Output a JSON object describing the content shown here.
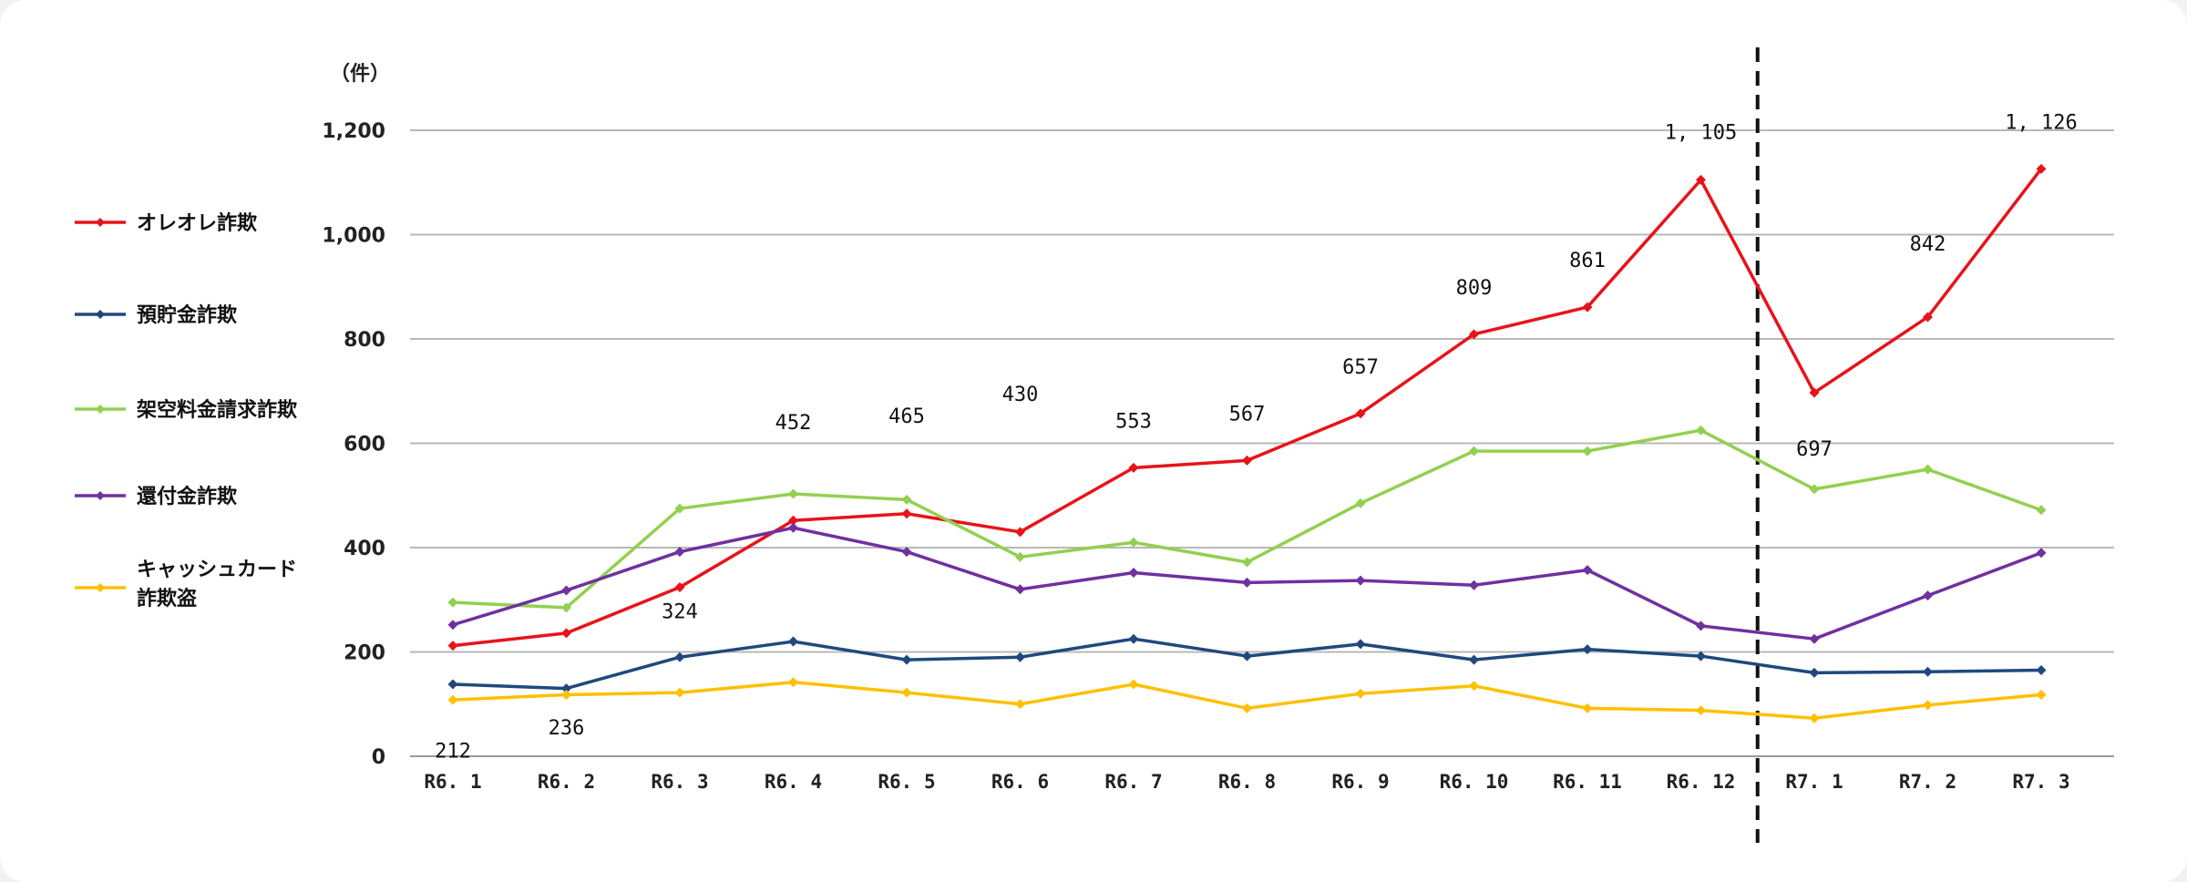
{
  "chart_data": {
    "type": "line",
    "unit_label": "（件）",
    "categories": [
      "R6. 1",
      "R6. 2",
      "R6. 3",
      "R6. 4",
      "R6. 5",
      "R6. 6",
      "R6. 7",
      "R6. 8",
      "R6. 9",
      "R6. 10",
      "R6. 11",
      "R6. 12",
      "R7. 1",
      "R7. 2",
      "R7. 3"
    ],
    "ylim": [
      0,
      1200
    ],
    "yticks": [
      0,
      200,
      400,
      600,
      800,
      1000,
      1200
    ],
    "ytick_labels": [
      "0",
      "200",
      "400",
      "600",
      "800",
      "1,000",
      "1,200"
    ],
    "grid": true,
    "legend_position": "left",
    "divider_after_category": "R6. 12",
    "series": [
      {
        "name": "オレオレ詐欺",
        "color": "#e8131a",
        "values": [
          212,
          236,
          324,
          452,
          465,
          430,
          553,
          567,
          657,
          809,
          861,
          1105,
          697,
          842,
          1126
        ],
        "labels": [
          "212",
          "236",
          "324",
          "452",
          "465",
          "430",
          "553",
          "567",
          "657",
          "809",
          "861",
          "1, 105",
          "697",
          "842",
          "1, 126"
        ]
      },
      {
        "name": "預貯金詐欺",
        "color": "#1f497d",
        "values": [
          138,
          130,
          190,
          220,
          185,
          190,
          225,
          192,
          215,
          185,
          205,
          192,
          160,
          162,
          165
        ]
      },
      {
        "name": "架空料金請求詐欺",
        "color": "#92d050",
        "values": [
          295,
          285,
          475,
          503,
          492,
          382,
          410,
          372,
          485,
          585,
          585,
          625,
          512,
          550,
          472
        ]
      },
      {
        "name": "還付金詐欺",
        "color": "#7030a0",
        "values": [
          252,
          318,
          392,
          438,
          392,
          320,
          352,
          333,
          337,
          328,
          357,
          250,
          225,
          308,
          390
        ]
      },
      {
        "name": "キャッシュカード\n詐欺盗",
        "color": "#ffc000",
        "values": [
          108,
          118,
          122,
          142,
          122,
          100,
          138,
          92,
          120,
          135,
          92,
          88,
          73,
          98,
          118
        ]
      }
    ]
  }
}
